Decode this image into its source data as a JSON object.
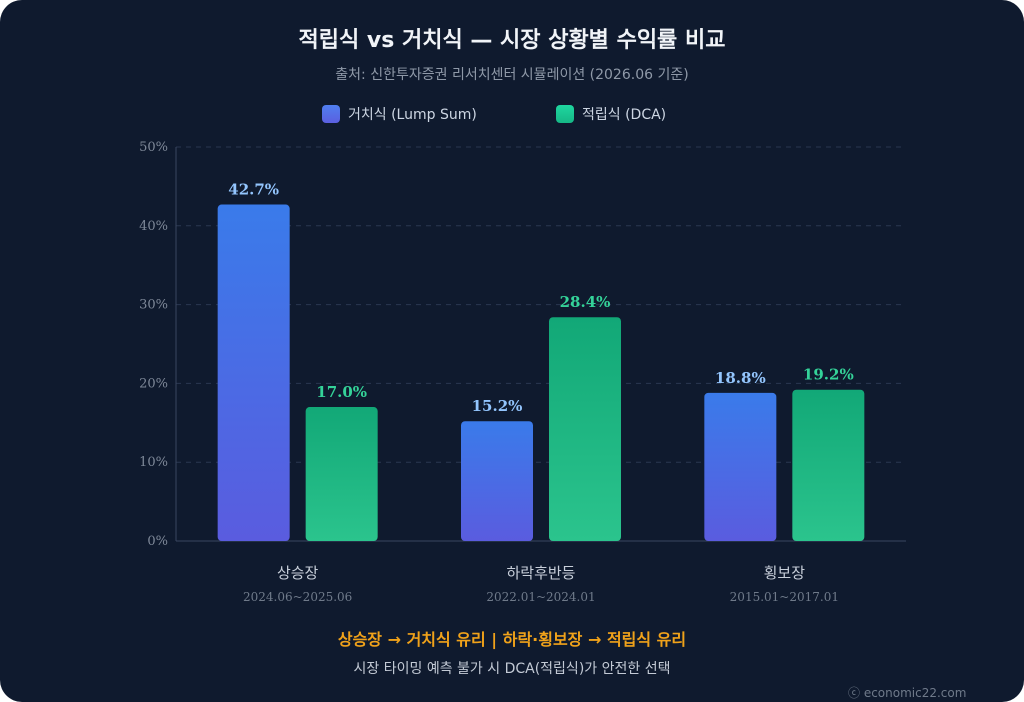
{
  "header": {
    "title": "적립식 vs 거치식 — 시장 상황별 수익률 비교",
    "subtitle": "출처: 신한투자증권 리서치센터 시뮬레이션 (2026.06 기준)"
  },
  "footer": {
    "conclusion": "상승장 → 거치식 유리 | 하락·횡보장 → 적립식 유리",
    "note": "시장 타이밍 예측 불가 시 DCA(적립식)가 안전한 선택",
    "watermark": "ⓒ economic22.com"
  },
  "colors": {
    "lump_sum_top": "#3a7bea",
    "lump_sum_bottom": "#5a5cdf",
    "dca_top": "#12a877",
    "dca_bottom": "#2bc48d",
    "lump_sum_label": "#93c5fd",
    "dca_label": "#34d399",
    "conclusion": "#f0a21a"
  },
  "chart_data": {
    "type": "bar",
    "categories": [
      "상승장",
      "하락후반등",
      "횡보장"
    ],
    "category_periods": [
      "2024.06~2025.06",
      "2022.01~2024.01",
      "2015.01~2017.01"
    ],
    "series": [
      {
        "name": "거치식 (Lump Sum)",
        "values": [
          42.7,
          15.2,
          18.8
        ]
      },
      {
        "name": "적립식 (DCA)",
        "values": [
          17.0,
          28.4,
          19.2
        ]
      }
    ],
    "value_labels": [
      [
        "42.7%",
        "15.2%",
        "18.8%"
      ],
      [
        "17.0%",
        "28.4%",
        "19.2%"
      ]
    ],
    "ylim": [
      0,
      50
    ],
    "yticks": [
      0,
      10,
      20,
      30,
      40,
      50
    ],
    "ytick_labels": [
      "0%",
      "10%",
      "20%",
      "30%",
      "40%",
      "50%"
    ],
    "grid": true,
    "legend_position": "top-center"
  }
}
